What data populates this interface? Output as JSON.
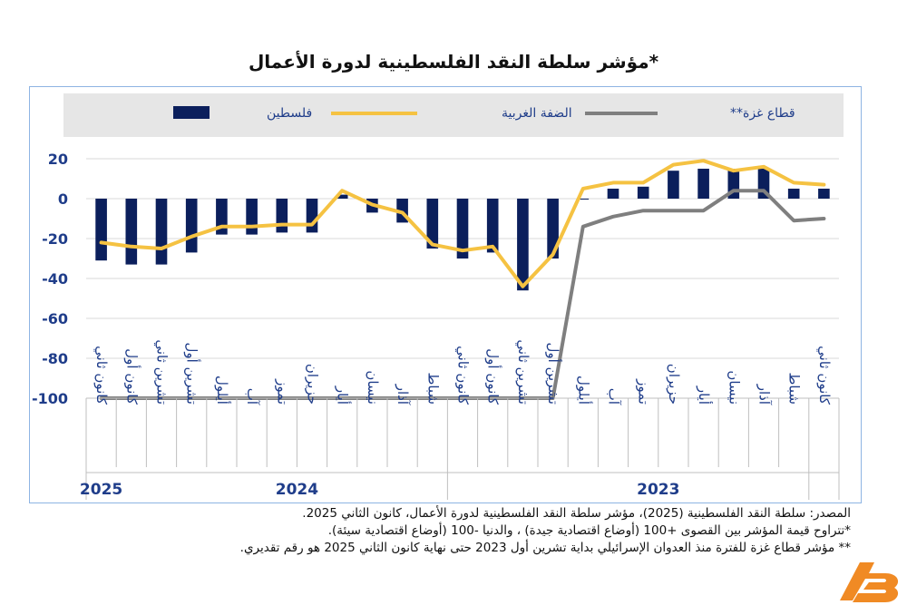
{
  "chart_data": {
    "type": "bar+line",
    "title": "مؤشر سلطة النقد الفلسطينية لدورة الأعمال*",
    "ylim": [
      -100,
      20
    ],
    "yticks": [
      20,
      0,
      -20,
      -40,
      -60,
      -80,
      -100
    ],
    "categories": [
      "كانون ثاني",
      "شباط",
      "آذار",
      "نيسان",
      "أيار",
      "حزيران",
      "تموز",
      "آب",
      "أيلول",
      "تشرين أول",
      "تشرين ثاني",
      "كانون أول",
      "كانون ثاني",
      "شباط",
      "آذار",
      "نيسان",
      "أيار",
      "حزيران",
      "تموز",
      "آب",
      "أيلول",
      "تشرين أول",
      "تشرين ثاني",
      "كانون أول",
      "كانون ثاني"
    ],
    "year_groups": [
      {
        "label": "2023",
        "start": 0,
        "end": 11
      },
      {
        "label": "2024",
        "start": 12,
        "end": 23
      },
      {
        "label": "2025",
        "start": 24,
        "end": 24
      }
    ],
    "legend_position": "top",
    "series": [
      {
        "name": "فلسطين",
        "type": "bar",
        "color": "#0b1f5c",
        "values": [
          5,
          5,
          15,
          15,
          15,
          14,
          6,
          5,
          0,
          -30,
          -46,
          -27,
          -30,
          -25,
          -12,
          -7,
          2,
          -17,
          -17,
          -18,
          -18,
          -27,
          -33,
          -33,
          -31
        ]
      },
      {
        "name": "الضفة الغربية",
        "type": "line",
        "color": "#f5c242",
        "values": [
          7,
          8,
          16,
          14,
          19,
          17,
          8,
          8,
          5,
          -28,
          -44,
          -24,
          -26,
          -23,
          -7,
          -3,
          4,
          -13,
          -13,
          -14,
          -14,
          -19,
          -25,
          -24,
          -22
        ]
      },
      {
        "name": "قطاع غزة**",
        "type": "line",
        "color": "#7f7f7f",
        "values": [
          -10,
          -11,
          4,
          4,
          -6,
          -6,
          -6,
          -9,
          -14,
          -100,
          -100,
          -100,
          -100,
          -100,
          -100,
          -100,
          -100,
          -100,
          -100,
          -100,
          -100,
          -100,
          -100,
          -100,
          -100
        ]
      }
    ]
  },
  "notes": {
    "source": "المصدر: سلطة النقد الفلسطينية (2025)، مؤشر سلطة النقد الفلسطينية لدورة الأعمال، كانون الثاني 2025.",
    "note1": "*تتراوح قيمة المؤشر بين القصوى +100 (أوضاع اقتصادية جيدة) ، والدنيا -100 (أوضاع اقتصادية سيئة).",
    "note2": "** مؤشر قطاع غزة للفترة منذ العدوان الإسرائيلي بداية تشرين أول 2023 حتى نهاية كانون الثاني 2025 هو رقم تقديري."
  },
  "colors": {
    "frame": "#8eb4e3",
    "legend_bg": "#e6e6e6",
    "grid": "#d9d9d9",
    "axis_text": "#1f3d8a"
  },
  "logo_icon": "alquds-logo-icon"
}
